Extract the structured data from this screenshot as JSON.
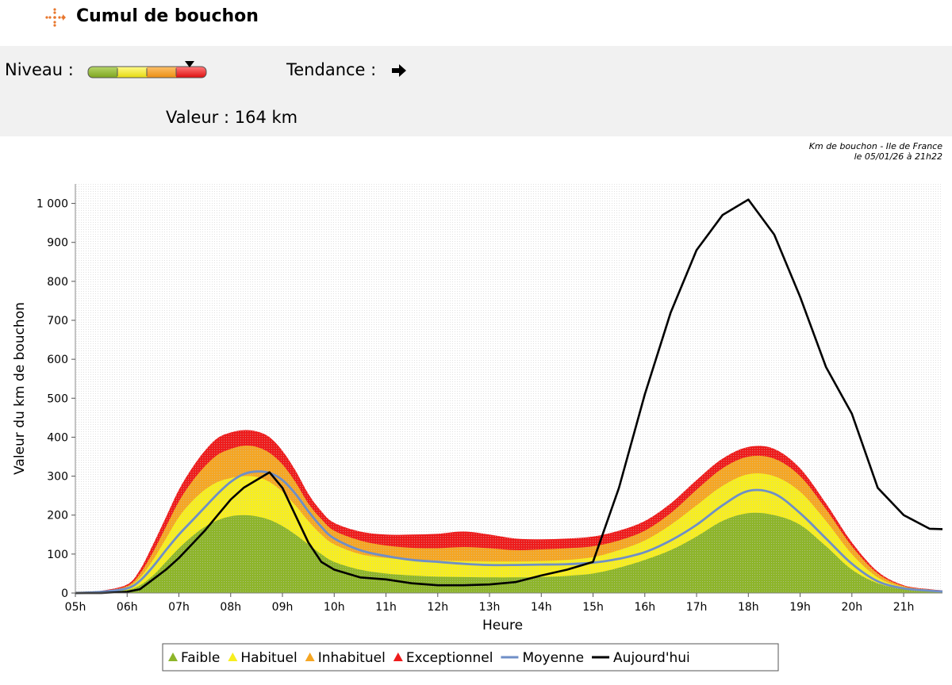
{
  "header": {
    "title": "Cumul de bouchon",
    "icon": "dotted-arrows-icon",
    "icon_color": "#e8772e"
  },
  "status": {
    "niveau_label": "Niveau :",
    "niveau_level": "Exceptionnel",
    "tendance_label": "Tendance :",
    "tendance_icon": "arrow-right-icon",
    "valeur_line": "Valeur : 164 km"
  },
  "chart_data": {
    "type": "area",
    "caption": [
      "Km de bouchon - Ile de France",
      "le 05/01/26 à 21h22"
    ],
    "xlabel": "Heure",
    "ylabel": "Valeur du  km de bouchon",
    "xlim": [
      5,
      21.75
    ],
    "ylim": [
      0,
      1050
    ],
    "x_ticks": [
      "05h",
      "06h",
      "07h",
      "08h",
      "09h",
      "10h",
      "11h",
      "12h",
      "13h",
      "14h",
      "15h",
      "16h",
      "17h",
      "18h",
      "19h",
      "20h",
      "21h"
    ],
    "y_ticks": [
      0,
      100,
      200,
      300,
      400,
      500,
      600,
      700,
      800,
      900,
      1000
    ],
    "y_tick_labels": [
      "0",
      "100",
      "200",
      "300",
      "400",
      "500",
      "600",
      "700",
      "800",
      "900",
      "1 000"
    ],
    "grid": true,
    "legend_position": "bottom",
    "colors": {
      "Faible": "#8db52a",
      "Habituel": "#f7ee1f",
      "Inhabituel": "#f5a623",
      "Exceptionnel": "#ee1c1c",
      "Moyenne": "#6f8fc7",
      "Aujourd'hui": "#000000"
    },
    "x": [
      5,
      5.5,
      6,
      6.25,
      6.5,
      6.75,
      7,
      7.25,
      7.5,
      7.75,
      8,
      8.25,
      8.5,
      8.75,
      9,
      9.25,
      9.5,
      9.75,
      10,
      10.5,
      11,
      11.5,
      12,
      12.5,
      13,
      13.5,
      14,
      14.5,
      15,
      15.5,
      16,
      16.5,
      17,
      17.5,
      18,
      18.5,
      19,
      19.5,
      20,
      20.5,
      21,
      21.5,
      21.75
    ],
    "series": [
      {
        "name": "Faible",
        "kind": "area",
        "values": [
          0,
          2,
          8,
          20,
          45,
          80,
          115,
          145,
          170,
          187,
          197,
          200,
          197,
          188,
          172,
          150,
          125,
          100,
          80,
          60,
          50,
          45,
          42,
          41,
          40,
          40,
          41,
          44,
          50,
          65,
          85,
          110,
          145,
          185,
          205,
          200,
          175,
          120,
          60,
          25,
          10,
          5,
          3
        ]
      },
      {
        "name": "Habituel",
        "kind": "area",
        "values": [
          0,
          4,
          15,
          40,
          85,
          140,
          195,
          235,
          265,
          285,
          295,
          300,
          298,
          285,
          260,
          225,
          185,
          150,
          125,
          100,
          90,
          85,
          83,
          82,
          81,
          81,
          82,
          85,
          92,
          110,
          135,
          175,
          225,
          275,
          305,
          300,
          260,
          185,
          100,
          40,
          15,
          7,
          5
        ]
      },
      {
        "name": "Inhabituel",
        "kind": "area",
        "values": [
          0,
          5,
          18,
          50,
          105,
          170,
          235,
          285,
          325,
          355,
          370,
          378,
          375,
          360,
          330,
          285,
          230,
          190,
          160,
          135,
          122,
          116,
          115,
          118,
          115,
          110,
          112,
          115,
          120,
          135,
          160,
          205,
          265,
          320,
          350,
          345,
          300,
          215,
          120,
          50,
          18,
          9,
          6
        ]
      },
      {
        "name": "Exceptionnel",
        "kind": "area",
        "values": [
          0,
          6,
          22,
          60,
          125,
          195,
          265,
          320,
          365,
          398,
          412,
          418,
          415,
          400,
          365,
          315,
          255,
          210,
          180,
          158,
          150,
          150,
          152,
          158,
          150,
          140,
          138,
          140,
          145,
          160,
          185,
          230,
          290,
          345,
          375,
          370,
          320,
          230,
          130,
          55,
          20,
          10,
          7
        ]
      },
      {
        "name": "Moyenne",
        "kind": "line",
        "values": [
          0,
          3,
          12,
          32,
          68,
          110,
          150,
          185,
          220,
          255,
          285,
          305,
          312,
          308,
          290,
          255,
          210,
          170,
          140,
          110,
          95,
          85,
          80,
          75,
          72,
          72,
          73,
          74,
          78,
          88,
          105,
          135,
          175,
          225,
          262,
          255,
          205,
          140,
          75,
          30,
          12,
          6,
          4
        ]
      },
      {
        "name": "Aujourd'hui",
        "kind": "line",
        "values": [
          0,
          0,
          3,
          10,
          35,
          60,
          90,
          125,
          160,
          200,
          240,
          270,
          290,
          310,
          270,
          200,
          130,
          80,
          60,
          40,
          35,
          25,
          20,
          20,
          22,
          28,
          45,
          60,
          80,
          270,
          510,
          720,
          880,
          970,
          1010,
          920,
          760,
          580,
          460,
          270,
          200,
          165,
          164
        ]
      }
    ]
  },
  "legend": {
    "items": [
      {
        "label": "Faible",
        "marker": "triangle",
        "color": "#8db52a"
      },
      {
        "label": "Habituel",
        "marker": "triangle",
        "color": "#f7ee1f"
      },
      {
        "label": "Inhabituel",
        "marker": "triangle",
        "color": "#f5a623"
      },
      {
        "label": "Exceptionnel",
        "marker": "triangle",
        "color": "#ee1c1c"
      },
      {
        "label": "Moyenne",
        "marker": "line",
        "color": "#6f8fc7"
      },
      {
        "label": "Aujourd'hui",
        "marker": "line",
        "color": "#000000"
      }
    ]
  }
}
